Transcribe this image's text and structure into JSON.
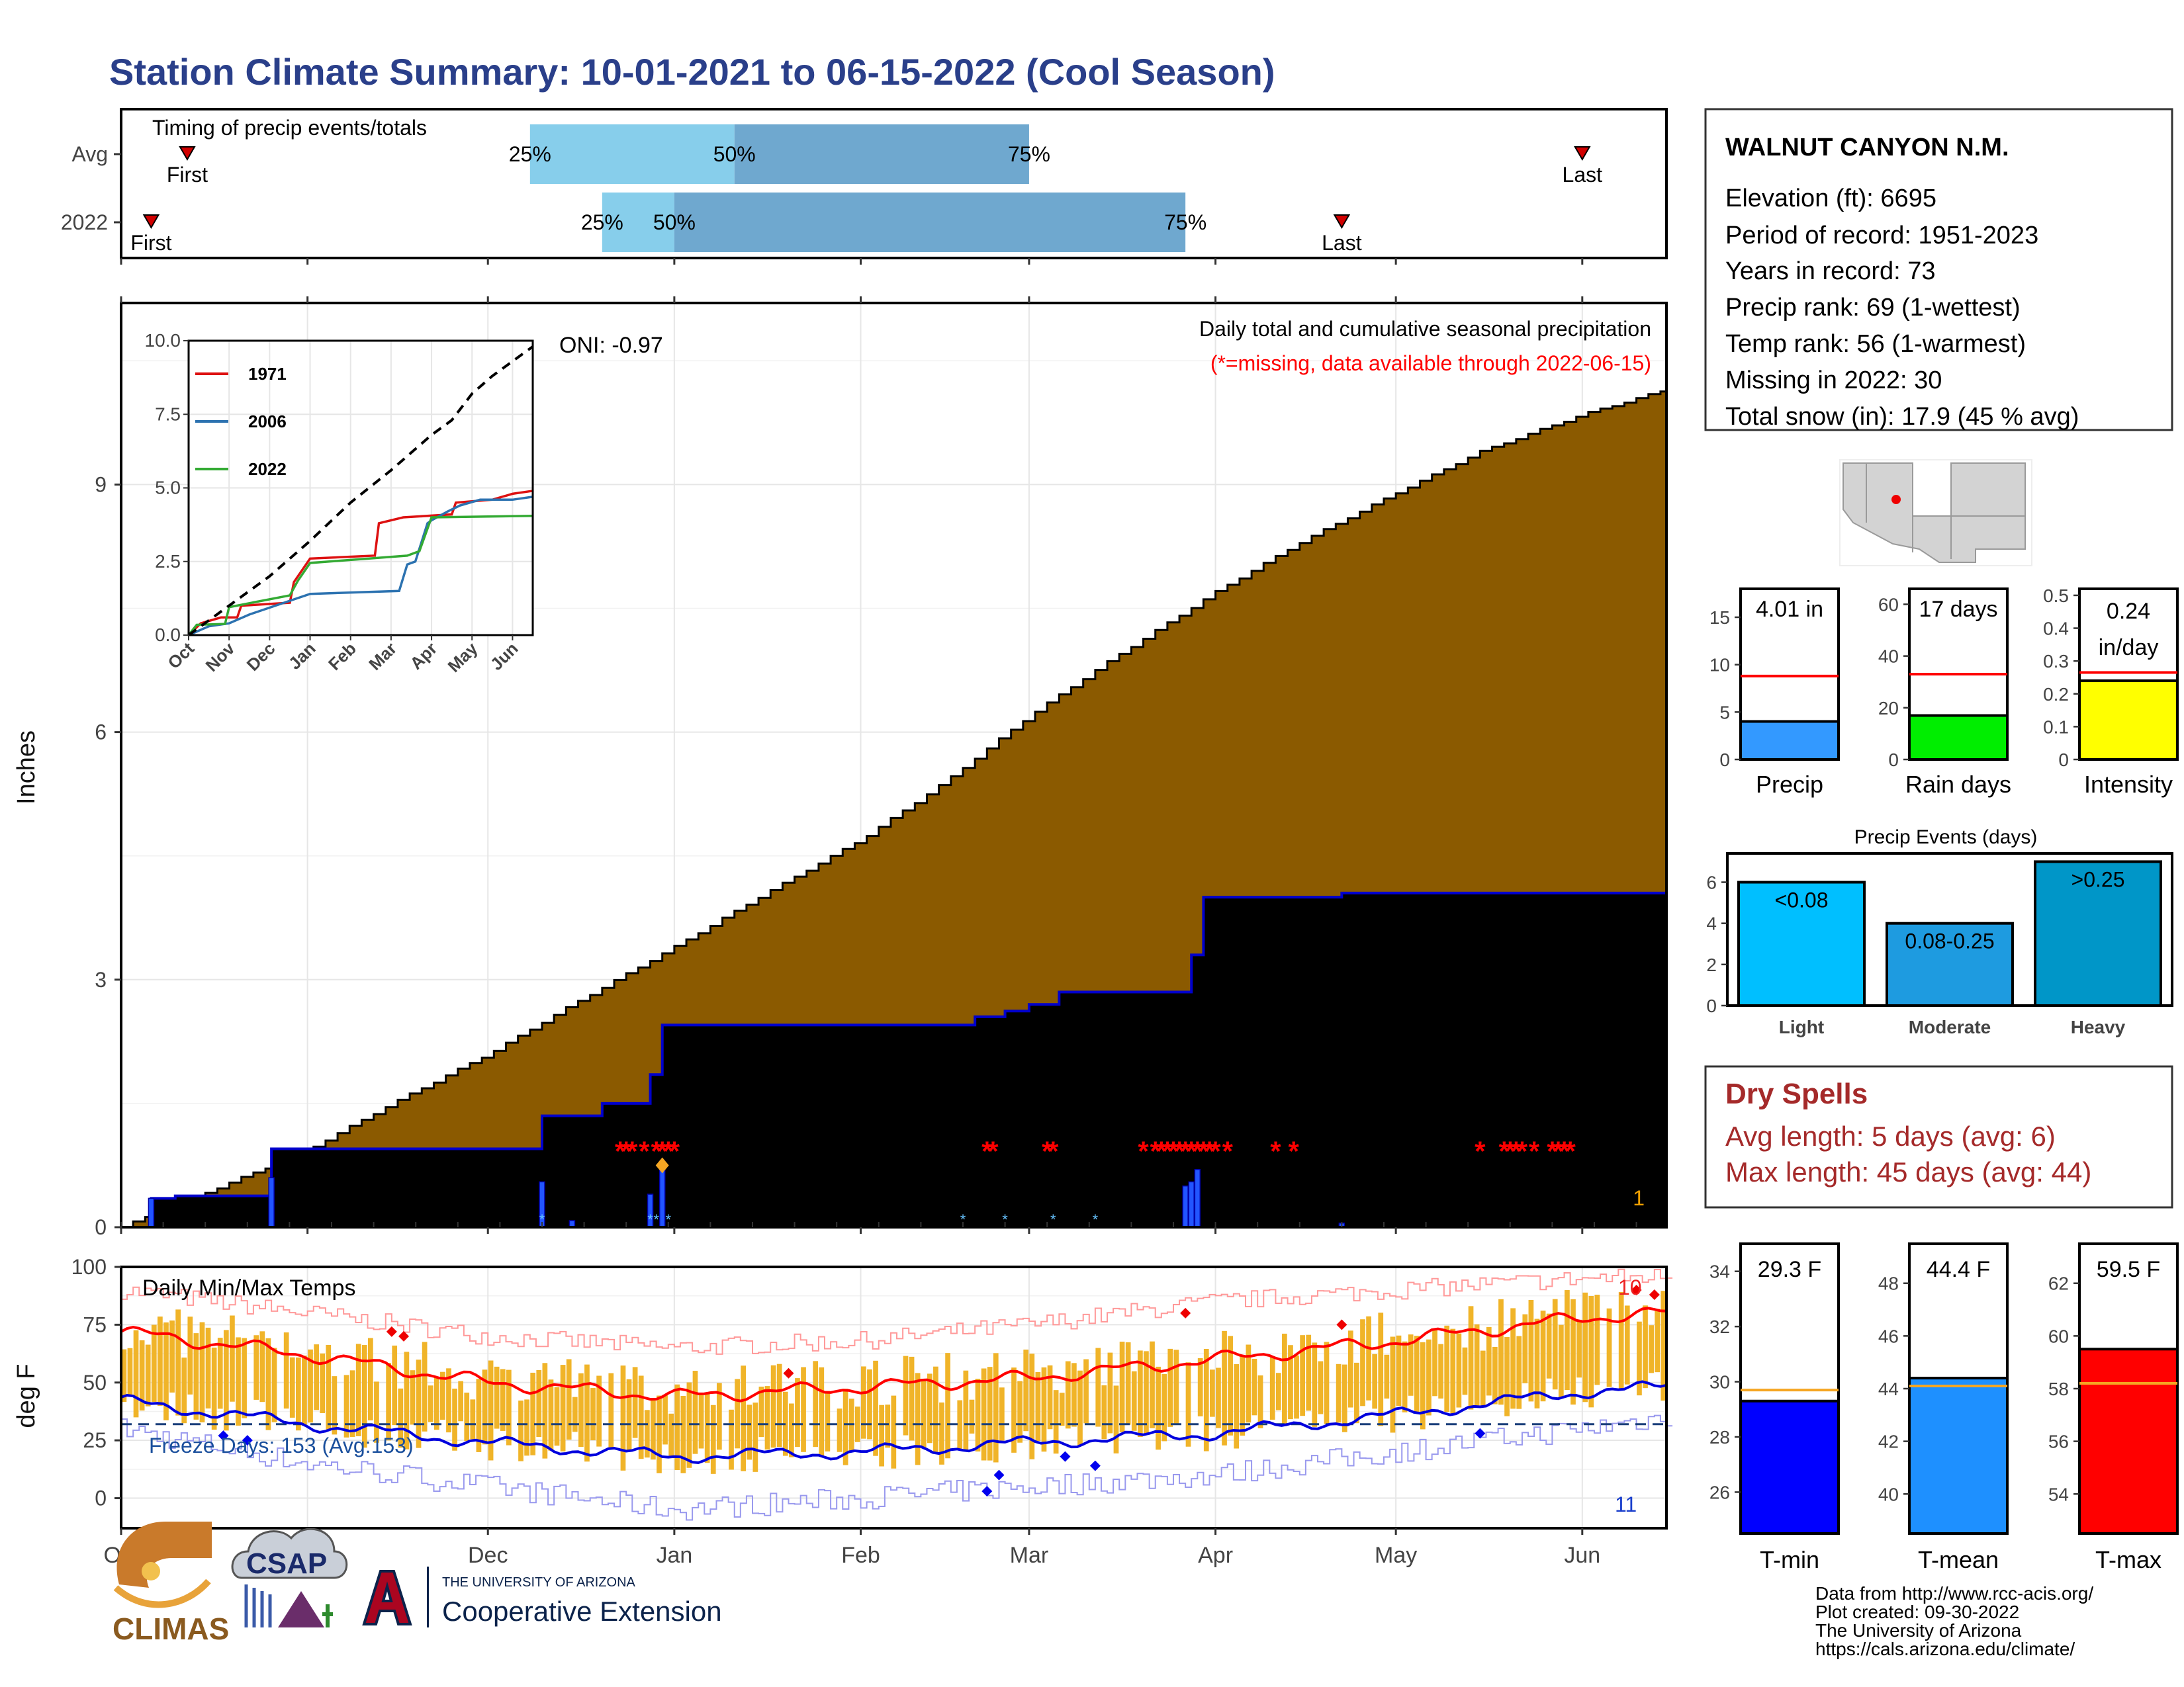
{
  "page_title": "Station Climate Summary: 10-01-2021 to 06-15-2022 (Cool Season)",
  "station_info": {
    "name": "WALNUT CANYON N.M.",
    "lines": [
      "Elevation (ft): 6695",
      "Period of record: 1951-2023",
      "Years in record: 73",
      "Precip rank: 69 (1-wettest)",
      "Temp rank: 56 (1-warmest)",
      "Missing in 2022: 30",
      "Total snow (in): 17.9 (45 % avg)"
    ]
  },
  "dry_spells": {
    "title": "Dry Spells",
    "avg": "Avg length: 5 days (avg: 6)",
    "max": "Max length: 45 days (avg: 44)"
  },
  "credits": [
    "Data from http://www.rcc-acis.org/",
    "Plot created: 09-30-2022",
    "The University of Arizona",
    "https://cals.arizona.edu/climate/"
  ],
  "logos": {
    "climas": "CLIMAS",
    "csap": "CSAP",
    "ua_small": "THE UNIVERSITY OF ARIZONA",
    "ua_ext": "Cooperative Extension"
  },
  "colors": {
    "title": "#2a3f8a",
    "cum_precip_2022": "#8b5a00",
    "avg_cum_precip": "#e0e0e0",
    "avg_line": "#0000cc",
    "missing": "#ff0000",
    "temp_bar": "#f0b429",
    "tmax_line": "#ff0000",
    "tmin_line": "#0000dd",
    "q_light": "#87ceeb",
    "q_dark": "#6fa8cf",
    "dry_spells": "#a52a2a"
  },
  "chart_data": [
    {
      "id": "timing",
      "type": "bar",
      "title": "Timing of precip events/totals",
      "x_range": [
        "2021-10-01",
        "2022-06-15"
      ],
      "rows": [
        {
          "label": "Avg",
          "first": "2021-10-12",
          "p25": "2021-12-08",
          "p50": "2022-01-11",
          "p75": "2022-03-01",
          "last": "2022-06-01"
        },
        {
          "label": "2022",
          "first": "2021-10-06",
          "p25": "2021-12-20",
          "p50": "2022-01-01",
          "p75": "2022-03-27",
          "last": "2022-04-22"
        }
      ],
      "pct_labels": [
        "25%",
        "50%",
        "75%"
      ],
      "event_labels": [
        "First",
        "Last"
      ]
    },
    {
      "id": "cumulative_precip",
      "type": "area",
      "title": "Daily total and cumulative seasonal precipitation",
      "subtitle": "(*=missing, data available through 2022-06-15)",
      "ylabel": "Inches",
      "ylim": [
        0,
        11.2
      ],
      "yticks": [
        0,
        3,
        6,
        9
      ],
      "x_range": [
        "2021-10-01",
        "2022-06-15"
      ],
      "x_ticks": [
        {
          "date": "2021-10-01",
          "label": "Oct"
        },
        {
          "date": "2021-11-01",
          "label": "Nov"
        },
        {
          "date": "2021-12-01",
          "label": "Dec"
        },
        {
          "date": "2022-01-01",
          "label": "Jan"
        },
        {
          "date": "2022-02-01",
          "label": "Feb"
        },
        {
          "date": "2022-03-01",
          "label": "Mar"
        },
        {
          "date": "2022-04-01",
          "label": "Apr"
        },
        {
          "date": "2022-05-01",
          "label": "May"
        },
        {
          "date": "2022-06-01",
          "label": "Jun"
        }
      ],
      "oni": "ONI: -0.97",
      "corner_note": "1",
      "avg_cumulative": {
        "x": [
          "2021-10-01",
          "2021-10-31",
          "2021-11-15",
          "2021-12-01",
          "2021-12-15",
          "2022-01-01",
          "2022-01-15",
          "2022-02-01",
          "2022-02-15",
          "2022-03-01",
          "2022-03-15",
          "2022-04-01",
          "2022-04-15",
          "2022-05-01",
          "2022-05-15",
          "2022-06-01",
          "2022-06-15"
        ],
        "y": [
          0,
          0.9,
          1.5,
          2.1,
          2.7,
          3.4,
          4.0,
          4.7,
          5.4,
          6.2,
          6.9,
          7.7,
          8.3,
          8.9,
          9.4,
          9.85,
          10.15
        ]
      },
      "cumulative_2022": {
        "x": [
          "2021-10-01",
          "2021-10-06",
          "2021-10-10",
          "2021-10-25",
          "2021-10-26",
          "2021-12-10",
          "2021-12-20",
          "2021-12-28",
          "2021-12-30",
          "2022-02-20",
          "2022-02-25",
          "2022-03-01",
          "2022-03-06",
          "2022-03-27",
          "2022-03-28",
          "2022-03-30",
          "2022-04-22",
          "2022-06-15"
        ],
        "y": [
          0,
          0.35,
          0.38,
          0.38,
          0.95,
          1.35,
          1.5,
          1.85,
          2.45,
          2.55,
          2.62,
          2.7,
          2.85,
          2.85,
          3.3,
          4.0,
          4.05,
          4.05
        ]
      },
      "daily_2022": {
        "x": [
          "2021-10-06",
          "2021-10-26",
          "2021-12-10",
          "2021-12-15",
          "2021-12-28",
          "2021-12-30",
          "2022-03-27",
          "2022-03-28",
          "2022-03-29",
          "2022-04-22"
        ],
        "y": [
          0.35,
          0.6,
          0.55,
          0.08,
          0.4,
          0.8,
          0.5,
          0.55,
          0.7,
          0.05
        ]
      },
      "missing_dates": [
        "2021-12-23",
        "2021-12-24",
        "2021-12-25",
        "2021-12-27",
        "2021-12-29",
        "2021-12-30",
        "2021-12-31",
        "2022-01-01",
        "2022-02-22",
        "2022-02-23",
        "2022-03-04",
        "2022-03-05",
        "2022-03-20",
        "2022-03-22",
        "2022-03-23",
        "2022-03-24",
        "2022-03-25",
        "2022-03-26",
        "2022-03-27",
        "2022-03-28",
        "2022-03-29",
        "2022-03-30",
        "2022-03-31",
        "2022-04-01",
        "2022-04-03",
        "2022-04-11",
        "2022-04-14",
        "2022-05-15",
        "2022-05-19",
        "2022-05-20",
        "2022-05-21",
        "2022-05-22",
        "2022-05-24",
        "2022-05-27",
        "2022-05-28",
        "2022-05-29",
        "2022-05-30"
      ],
      "inset": {
        "type": "line",
        "ylim": [
          0,
          10.0
        ],
        "yticks": [
          0.0,
          2.5,
          5.0,
          7.5,
          10.0
        ],
        "xticks": [
          "Oct",
          "Nov",
          "Dec",
          "Jan",
          "Feb",
          "Mar",
          "Apr",
          "May",
          "Jun"
        ],
        "series": [
          {
            "name": "1971",
            "color": "#dd1111",
            "x": [
              0,
              0.3,
              0.8,
              1.2,
              1.3,
              2.5,
              2.6,
              3.0,
              4.6,
              4.7,
              5.3,
              6.5,
              6.6,
              7.5,
              8.0,
              8.5
            ],
            "y": [
              0,
              0.4,
              0.6,
              0.6,
              1.0,
              1.1,
              1.8,
              2.6,
              2.7,
              3.8,
              4.0,
              4.1,
              4.5,
              4.6,
              4.8,
              4.9
            ]
          },
          {
            "name": "2006",
            "color": "#2c72b0",
            "x": [
              0,
              0.5,
              1.0,
              1.5,
              3.0,
              5.2,
              5.4,
              5.6,
              5.9,
              6.0,
              6.4,
              6.7,
              7.2,
              8.0,
              8.5
            ],
            "y": [
              0,
              0.3,
              0.4,
              0.7,
              1.4,
              1.5,
              2.4,
              2.5,
              3.8,
              3.9,
              4.2,
              4.4,
              4.6,
              4.6,
              4.7
            ]
          },
          {
            "name": "2022",
            "color": "#33aa33",
            "x": [
              0,
              0.2,
              0.9,
              1.0,
              2.5,
              2.7,
              3.0,
              5.4,
              5.7,
              6.0,
              8.5
            ],
            "y": [
              0,
              0.35,
              0.38,
              0.95,
              1.35,
              1.85,
              2.45,
              2.7,
              2.85,
              4.0,
              4.05
            ]
          },
          {
            "name": "avg",
            "color": "#000000",
            "x": [
              0,
              1,
              2,
              3,
              4,
              5,
              6,
              6.5,
              7,
              7.5,
              8,
              8.5
            ],
            "y": [
              0,
              1.0,
              2.0,
              3.2,
              4.5,
              5.6,
              6.8,
              7.3,
              8.2,
              8.8,
              9.3,
              9.8
            ]
          }
        ]
      }
    },
    {
      "id": "temps",
      "type": "bar",
      "title": "Daily Min/Max Temps",
      "ylabel": "deg F",
      "ylim": [
        -13,
        100
      ],
      "yticks": [
        0,
        25,
        50,
        75,
        100
      ],
      "freeze_label": "Freeze Days: 153 (Avg:153)",
      "freeze_line": 32,
      "record_high_count": "10",
      "record_low_count": "11",
      "x_range": [
        "2021-10-01",
        "2022-06-15"
      ],
      "x_ticks": [
        {
          "date": "2021-10-01",
          "label": "Oct"
        },
        {
          "date": "2021-11-01",
          "label": "Nov"
        },
        {
          "date": "2021-12-01",
          "label": "Dec"
        },
        {
          "date": "2022-01-01",
          "label": "Jan"
        },
        {
          "date": "2022-02-01",
          "label": "Feb"
        },
        {
          "date": "2022-03-01",
          "label": "Mar"
        },
        {
          "date": "2022-04-01",
          "label": "Apr"
        },
        {
          "date": "2022-05-01",
          "label": "May"
        },
        {
          "date": "2022-06-01",
          "label": "Jun"
        }
      ],
      "normal_high": {
        "x": [
          "2021-10-01",
          "2021-11-01",
          "2021-12-01",
          "2022-01-01",
          "2022-02-01",
          "2022-03-01",
          "2022-04-01",
          "2022-05-01",
          "2022-06-01",
          "2022-06-15"
        ],
        "y": [
          72,
          62,
          50,
          44,
          48,
          52,
          60,
          68,
          78,
          80
        ]
      },
      "normal_low": {
        "x": [
          "2021-10-01",
          "2021-11-01",
          "2021-12-01",
          "2022-01-01",
          "2022-02-01",
          "2022-03-01",
          "2022-04-01",
          "2022-05-01",
          "2022-06-01",
          "2022-06-15"
        ],
        "y": [
          42,
          32,
          24,
          18,
          20,
          24,
          28,
          36,
          46,
          48
        ]
      },
      "record_high": {
        "x": [
          "2021-10-01",
          "2021-11-01",
          "2021-12-01",
          "2022-01-01",
          "2022-02-01",
          "2022-03-01",
          "2022-04-01",
          "2022-05-01",
          "2022-06-01",
          "2022-06-15"
        ],
        "y": [
          90,
          80,
          70,
          65,
          68,
          75,
          85,
          90,
          95,
          96
        ]
      },
      "record_low": {
        "x": [
          "2021-10-01",
          "2021-11-01",
          "2021-12-01",
          "2022-01-01",
          "2022-02-01",
          "2022-03-01",
          "2022-04-01",
          "2022-05-01",
          "2022-06-01",
          "2022-06-15"
        ],
        "y": [
          30,
          15,
          5,
          -5,
          0,
          5,
          10,
          20,
          30,
          35
        ]
      }
    },
    {
      "id": "precip_bars",
      "type": "bar",
      "panels": [
        {
          "category": "Precip",
          "label": "4.01 in",
          "value": 4.01,
          "avg": 8.8,
          "ylim": [
            0,
            18
          ],
          "yticks": [
            0,
            5,
            10,
            15
          ],
          "color": "#3399ff"
        },
        {
          "category": "Rain days",
          "label": "17 days",
          "value": 17,
          "avg": 33,
          "ylim": [
            0,
            66
          ],
          "yticks": [
            0,
            20,
            40,
            60
          ],
          "color": "#00ee00"
        },
        {
          "category": "Intensity",
          "label_lines": [
            "0.24",
            "in/day"
          ],
          "value": 0.24,
          "avg": 0.265,
          "ylim": [
            0,
            0.52
          ],
          "yticks": [
            0.0,
            0.1,
            0.2,
            0.3,
            0.4,
            0.5
          ],
          "color": "#ffff00"
        }
      ]
    },
    {
      "id": "precip_events",
      "type": "bar",
      "title": "Precip Events (days)",
      "categories": [
        "Light",
        "Moderate",
        "Heavy"
      ],
      "bar_labels": [
        "<0.08",
        "0.08-0.25",
        ">0.25"
      ],
      "values": [
        6,
        4,
        7
      ],
      "ylim": [
        0,
        7.4
      ],
      "yticks": [
        0,
        2,
        4,
        6
      ],
      "colors": [
        "#00bfff",
        "#1e9be0",
        "#0096c8"
      ]
    },
    {
      "id": "temp_bars",
      "type": "bar",
      "panels": [
        {
          "category": "T-min",
          "label": "29.3 F",
          "value": 29.3,
          "avg": 29.7,
          "ylim": [
            24.5,
            35
          ],
          "yticks": [
            26,
            28,
            30,
            32,
            34
          ],
          "color": "#0000ff"
        },
        {
          "category": "T-mean",
          "label": "44.4 F",
          "value": 44.4,
          "avg": 44.1,
          "ylim": [
            38.5,
            49.5
          ],
          "yticks": [
            40,
            42,
            44,
            46,
            48
          ],
          "color": "#1e90ff"
        },
        {
          "category": "T-max",
          "label": "59.5 F",
          "value": 59.5,
          "avg": 58.2,
          "ylim": [
            52.5,
            63.5
          ],
          "yticks": [
            54,
            56,
            58,
            60,
            62
          ],
          "color": "#ff0000"
        }
      ]
    }
  ]
}
